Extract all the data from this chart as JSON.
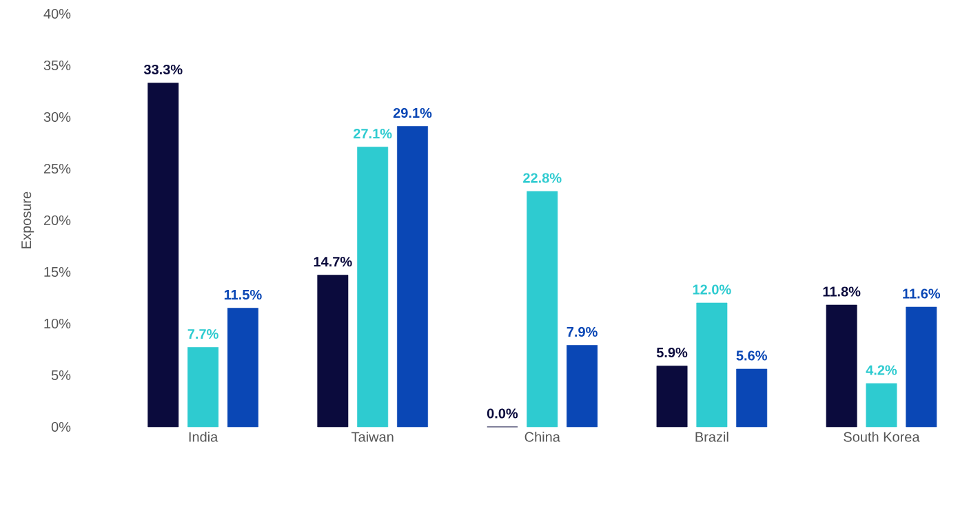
{
  "chart_data": {
    "type": "bar",
    "ylabel": "Exposure",
    "categories": [
      "India",
      "Taiwan",
      "China",
      "Brazil",
      "South Korea"
    ],
    "series": [
      {
        "color": "#0b0b3d",
        "values": [
          33.3,
          14.7,
          0.0,
          5.9,
          11.8
        ],
        "value_labels": [
          "33.3%",
          "14.7%",
          "0.0%",
          "5.9%",
          "11.8%"
        ]
      },
      {
        "color": "#2ecbd0",
        "values": [
          7.7,
          27.1,
          22.8,
          12.0,
          4.2
        ],
        "value_labels": [
          "7.7%",
          "27.1%",
          "22.8%",
          "12.0%",
          "4.2%"
        ]
      },
      {
        "color": "#0a47b5",
        "values": [
          11.5,
          29.1,
          7.9,
          5.6,
          11.6
        ],
        "value_labels": [
          "11.5%",
          "29.1%",
          "7.9%",
          "5.6%",
          "11.6%"
        ]
      }
    ],
    "ylim": [
      0,
      40
    ],
    "yticks": [
      {
        "value": 0,
        "label": "0%"
      },
      {
        "value": 5,
        "label": "5%"
      },
      {
        "value": 10,
        "label": "10%"
      },
      {
        "value": 15,
        "label": "15%"
      },
      {
        "value": 20,
        "label": "20%"
      },
      {
        "value": 25,
        "label": "25%"
      },
      {
        "value": 30,
        "label": "30%"
      },
      {
        "value": 35,
        "label": "35%"
      },
      {
        "value": 40,
        "label": "40%"
      }
    ]
  }
}
